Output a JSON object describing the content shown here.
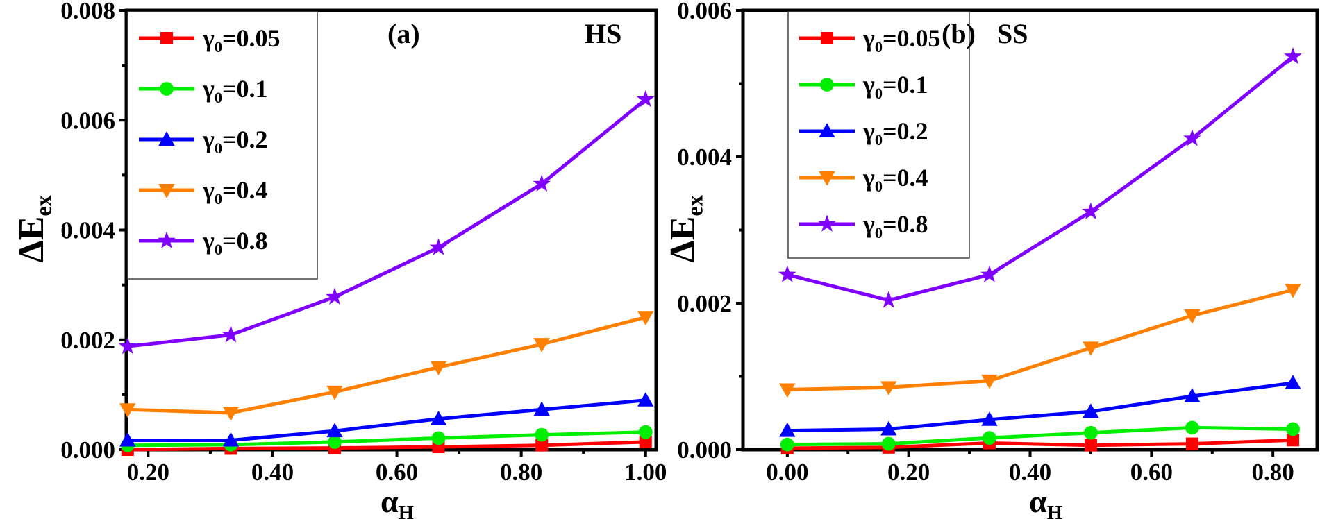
{
  "chart_data": [
    {
      "type": "line",
      "panel_label": "(a)",
      "annotation": "HS",
      "xlabel": {
        "main": "α",
        "sub": "H"
      },
      "ylabel": {
        "main": "ΔE",
        "sub": "ex"
      },
      "xlim": [
        0.165,
        1.017
      ],
      "ylim": [
        0,
        0.008
      ],
      "xticks": [
        "0.20",
        "0.40",
        "0.60",
        "0.80",
        "1.00"
      ],
      "yticks": [
        "0.000",
        "0.002",
        "0.004",
        "0.006",
        "0.008"
      ],
      "grid": false,
      "legend": "top-left",
      "x": [
        0.167,
        0.333,
        0.5,
        0.667,
        0.833,
        1.0
      ],
      "series": [
        {
          "name": {
            "main": "γ",
            "sub": "0",
            "rest": "=0.05"
          },
          "color": "#ff0000",
          "marker": "square",
          "values": [
            0.0,
            2e-05,
            3e-05,
            5e-05,
            8e-05,
            0.00014
          ]
        },
        {
          "name": {
            "main": "γ",
            "sub": "0",
            "rest": "=0.1"
          },
          "color": "#00ee00",
          "marker": "circle",
          "values": [
            8e-05,
            9e-05,
            0.00014,
            0.00021,
            0.00027,
            0.00032
          ]
        },
        {
          "name": {
            "main": "γ",
            "sub": "0",
            "rest": "=0.2"
          },
          "color": "#0000ff",
          "marker": "triangle-up",
          "values": [
            0.00017,
            0.00017,
            0.00034,
            0.00056,
            0.00073,
            0.0009
          ]
        },
        {
          "name": {
            "main": "γ",
            "sub": "0",
            "rest": "=0.4"
          },
          "color": "#ff8000",
          "marker": "triangle-down",
          "values": [
            0.00073,
            0.00067,
            0.00105,
            0.0015,
            0.00192,
            0.00241
          ]
        },
        {
          "name": {
            "main": "γ",
            "sub": "0",
            "rest": "=0.8"
          },
          "color": "#8000ff",
          "marker": "star",
          "values": [
            0.00188,
            0.00209,
            0.00278,
            0.00368,
            0.00484,
            0.00638
          ]
        }
      ]
    },
    {
      "type": "line",
      "panel_label": "(b)",
      "annotation": "SS",
      "xlabel": {
        "main": "α",
        "sub": "H"
      },
      "ylabel": {
        "main": "ΔE",
        "sub": "ex"
      },
      "xlim": [
        -0.073,
        0.873
      ],
      "ylim": [
        0,
        0.006
      ],
      "xticks": [
        "0.00",
        "0.20",
        "0.40",
        "0.60",
        "0.80"
      ],
      "yticks": [
        "0.000",
        "0.002",
        "0.004",
        "0.006"
      ],
      "grid": false,
      "legend": "top-left",
      "x": [
        0.0,
        0.167,
        0.333,
        0.5,
        0.667,
        0.833
      ],
      "series": [
        {
          "name": {
            "main": "γ",
            "sub": "0",
            "rest": "=0.05"
          },
          "color": "#ff0000",
          "marker": "square",
          "values": [
            2e-05,
            3e-05,
            9e-05,
            6e-05,
            8e-05,
            0.00013
          ]
        },
        {
          "name": {
            "main": "γ",
            "sub": "0",
            "rest": "=0.1"
          },
          "color": "#00ee00",
          "marker": "circle",
          "values": [
            7e-05,
            8e-05,
            0.00016,
            0.00023,
            0.0003,
            0.00028
          ]
        },
        {
          "name": {
            "main": "γ",
            "sub": "0",
            "rest": "=0.2"
          },
          "color": "#0000ff",
          "marker": "triangle-up",
          "values": [
            0.00026,
            0.00028,
            0.00041,
            0.00052,
            0.00073,
            0.00091
          ]
        },
        {
          "name": {
            "main": "γ",
            "sub": "0",
            "rest": "=0.4"
          },
          "color": "#ff8000",
          "marker": "triangle-down",
          "values": [
            0.00082,
            0.00085,
            0.00094,
            0.00139,
            0.00183,
            0.00218
          ]
        },
        {
          "name": {
            "main": "γ",
            "sub": "0",
            "rest": "=0.8"
          },
          "color": "#8000ff",
          "marker": "star",
          "values": [
            0.00239,
            0.00204,
            0.00239,
            0.00325,
            0.00425,
            0.00537
          ]
        }
      ]
    }
  ]
}
